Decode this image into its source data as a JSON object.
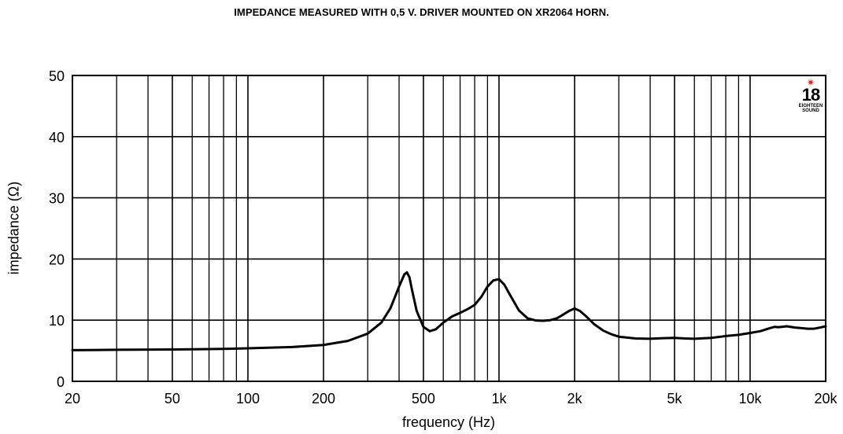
{
  "chart_data": {
    "type": "line",
    "title": "IMPEDANCE MEASURED WITH 0,5 V. DRIVER MOUNTED ON XR2064 HORN.",
    "xlabel": "frequency (Hz)",
    "ylabel": "impedance (Ω)",
    "x_scale": "log",
    "xlim": [
      20,
      20000
    ],
    "ylim": [
      0,
      50
    ],
    "grid": true,
    "x_major_ticks": [
      20,
      50,
      100,
      200,
      500,
      1000,
      2000,
      5000,
      10000,
      20000
    ],
    "x_tick_labels": [
      "20",
      "50",
      "100",
      "200",
      "500",
      "1k",
      "2k",
      "5k",
      "10k",
      "20k"
    ],
    "x_minor_gridlines": [
      30,
      40,
      60,
      70,
      80,
      90,
      300,
      400,
      600,
      700,
      800,
      900,
      3000,
      4000,
      6000,
      7000,
      8000,
      9000
    ],
    "y_ticks": [
      0,
      10,
      20,
      30,
      40,
      50
    ],
    "y_tick_labels": [
      "0",
      "10",
      "20",
      "30",
      "40",
      "50"
    ],
    "series": [
      {
        "color": "#000000",
        "x": [
          20,
          30,
          50,
          80,
          100,
          150,
          200,
          250,
          300,
          340,
          370,
          400,
          420,
          430,
          440,
          450,
          470,
          500,
          530,
          560,
          600,
          650,
          700,
          750,
          800,
          850,
          900,
          950,
          1000,
          1050,
          1100,
          1200,
          1300,
          1400,
          1500,
          1600,
          1700,
          1800,
          1900,
          2000,
          2100,
          2200,
          2400,
          2600,
          2800,
          3000,
          3500,
          4000,
          4500,
          5000,
          5500,
          6000,
          7000,
          8000,
          9000,
          10000,
          11000,
          12000,
          12500,
          13000,
          14000,
          15000,
          16000,
          17000,
          18000,
          19000,
          20000
        ],
        "y": [
          5.1,
          5.15,
          5.2,
          5.3,
          5.4,
          5.6,
          5.95,
          6.6,
          7.8,
          9.6,
          12.0,
          15.5,
          17.5,
          17.8,
          17.0,
          15.0,
          11.5,
          8.9,
          8.2,
          8.5,
          9.6,
          10.6,
          11.2,
          11.8,
          12.5,
          13.8,
          15.5,
          16.5,
          16.7,
          15.8,
          14.3,
          11.6,
          10.3,
          9.95,
          9.9,
          10.0,
          10.3,
          10.9,
          11.5,
          11.9,
          11.5,
          10.8,
          9.3,
          8.3,
          7.7,
          7.3,
          7.0,
          6.95,
          7.05,
          7.1,
          7.0,
          6.95,
          7.1,
          7.4,
          7.6,
          7.9,
          8.2,
          8.7,
          8.9,
          8.85,
          9.0,
          8.8,
          8.7,
          8.6,
          8.6,
          8.8,
          9.0
        ]
      }
    ]
  },
  "logo": {
    "star": "✷",
    "number": "18",
    "text_line1": "EIGHTEEN",
    "text_line2": "SOUND",
    "color": "#d9262b"
  }
}
